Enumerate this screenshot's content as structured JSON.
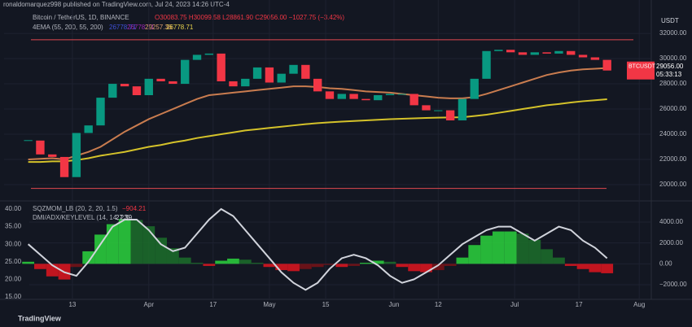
{
  "header": {
    "author_line": "ronaldomarquez998 published on TradingView.com, Jul 24, 2023 14:26 UTC-4",
    "symbol": "Bitcoin / TetherUS, 1D, BINANCE",
    "ohlc": "O30083.75  H30099.58  L28861.90  C29056.00  −1027.75 (−3.42%)",
    "ema_title": "4EMA (55, 200, 55, 200)",
    "ema_values": [
      "26778.71",
      "26778.71",
      "29257.36",
      "26778.71"
    ],
    "currency": "USDT",
    "brand": "TradingView"
  },
  "chart_data": [
    {
      "type": "candlestick",
      "x": [
        61,
        64,
        67,
        70,
        73,
        76,
        79,
        82,
        85,
        88,
        91,
        94,
        97,
        100,
        103,
        106,
        109,
        112,
        115,
        118,
        121,
        124,
        127,
        130,
        133,
        136,
        139,
        142,
        145,
        148,
        151,
        154,
        157,
        160,
        163,
        166,
        169,
        172,
        175,
        178,
        181,
        184,
        187,
        190,
        193,
        196,
        199,
        202,
        205
      ],
      "close": [
        23500,
        22400,
        22200,
        20600,
        24100,
        24700,
        26900,
        28000,
        27800,
        27100,
        28400,
        28200,
        28000,
        29900,
        30300,
        30400,
        28200,
        27800,
        28400,
        29300,
        28100,
        28800,
        29500,
        28400,
        27400,
        26800,
        27200,
        26800,
        26700,
        27100,
        27200,
        27200,
        26300,
        25900,
        25900,
        25100,
        26800,
        28400,
        30600,
        30700,
        30500,
        30300,
        30500,
        30400,
        30600,
        30300,
        30100,
        29900,
        29056
      ],
      "up_color": "#089981",
      "down_color": "#f23645",
      "lines": [
        {
          "color": "#c97c4f",
          "values": [
            22000,
            22050,
            22100,
            22000,
            22300,
            22600,
            23000,
            23600,
            24200,
            24700,
            25200,
            25600,
            26000,
            26400,
            26800,
            27100,
            27200,
            27300,
            27400,
            27500,
            27600,
            27700,
            27800,
            27800,
            27750,
            27650,
            27600,
            27500,
            27400,
            27350,
            27300,
            27200,
            27100,
            27000,
            26900,
            26850,
            26850,
            26950,
            27200,
            27500,
            27800,
            28100,
            28400,
            28700,
            28900,
            29050,
            29150,
            29200,
            29257.36
          ]
        },
        {
          "color": "#d4c22a",
          "values": [
            21800,
            21800,
            21850,
            21850,
            21950,
            22100,
            22300,
            22450,
            22600,
            22800,
            23000,
            23150,
            23350,
            23500,
            23700,
            23850,
            24000,
            24150,
            24300,
            24400,
            24500,
            24600,
            24700,
            24800,
            24880,
            24950,
            25000,
            25050,
            25100,
            25150,
            25200,
            25230,
            25260,
            25290,
            25320,
            25330,
            25350,
            25450,
            25550,
            25700,
            25850,
            26000,
            26150,
            26300,
            26400,
            26520,
            26620,
            26700,
            26778.71
          ]
        }
      ],
      "levels": [
        31500,
        19700
      ],
      "level_color": "#e0484f",
      "price_tag": {
        "symbol": "BTCUSDT",
        "price": "29056.00",
        "timer": "05:33:13"
      },
      "xlim": [
        55,
        216
      ],
      "ylim": [
        18840,
        34650
      ],
      "xticks": [
        {
          "value": 72,
          "label": "13"
        },
        {
          "value": 91,
          "label": "Apr"
        },
        {
          "value": 107,
          "label": "17"
        },
        {
          "value": 121,
          "label": "May"
        },
        {
          "value": 135,
          "label": "15"
        },
        {
          "value": 152,
          "label": "Jun"
        },
        {
          "value": 163,
          "label": "12"
        },
        {
          "value": 182,
          "label": "Jul"
        },
        {
          "value": 198,
          "label": "17"
        },
        {
          "value": 213,
          "label": "Aug"
        }
      ],
      "yticks": [
        {
          "value": 20000,
          "label": "20000.00"
        },
        {
          "value": 22000,
          "label": "22000.00"
        },
        {
          "value": 24000,
          "label": "24000.00"
        },
        {
          "value": 26000,
          "label": "26000.00"
        },
        {
          "value": 28000,
          "label": "28000.00"
        },
        {
          "value": 30000,
          "label": "30000.00"
        },
        {
          "value": 32000,
          "label": "32000.00"
        }
      ]
    },
    {
      "type": "bar",
      "title": "SQZMOM_LB (20, 2, 20, 1.5)",
      "title_value": "−904.21",
      "subtitle": "DMI/ADX/KEYLEVEL (14, 14, 23)",
      "subtitle_value": "27.39",
      "x": [
        61,
        64,
        67,
        70,
        73,
        76,
        79,
        82,
        85,
        88,
        91,
        94,
        97,
        100,
        103,
        106,
        109,
        112,
        115,
        118,
        121,
        124,
        127,
        130,
        133,
        136,
        139,
        142,
        145,
        148,
        151,
        154,
        157,
        160,
        163,
        166,
        169,
        172,
        175,
        178,
        181,
        184,
        187,
        190,
        193,
        196,
        199,
        202,
        205
      ],
      "series": [
        {
          "axis": "y2",
          "values": [
            200,
            -500,
            -1200,
            -1500,
            -300,
            1200,
            2800,
            3800,
            4300,
            4200,
            3600,
            2500,
            1500,
            600,
            100,
            -200,
            300,
            500,
            400,
            100,
            -300,
            -600,
            -700,
            -500,
            -300,
            -100,
            -300,
            -200,
            100,
            300,
            200,
            -300,
            -700,
            -800,
            -600,
            -200,
            600,
            1800,
            2700,
            3100,
            3100,
            2900,
            2300,
            1400,
            600,
            -200,
            -500,
            -800,
            -900
          ]
        },
        {
          "color": "#d1d4dc",
          "values": [
            30,
            27,
            24,
            22,
            21,
            25,
            30,
            35,
            37,
            37,
            34,
            30,
            28,
            29,
            33,
            37,
            40,
            38,
            34,
            30,
            26,
            22,
            19,
            17,
            19,
            23,
            26,
            27,
            26,
            24,
            21,
            19,
            20,
            22,
            24,
            27,
            30,
            32,
            34,
            35,
            35,
            33,
            31,
            33,
            35,
            34,
            31,
            29,
            26
          ]
        }
      ],
      "colors": {
        "up_strong": "#2bd43d",
        "up_weak": "#1c6e2a",
        "down_strong": "#e0151f",
        "down_weak": "#7a1216"
      },
      "xlim": [
        55,
        216
      ],
      "ylim": [
        14.3,
        41.85
      ],
      "y2lim": [
        -3400,
        5870
      ],
      "yticks": [
        {
          "value": 15,
          "label": "15.00"
        },
        {
          "value": 20,
          "label": "20.00"
        },
        {
          "value": 25,
          "label": "25.00"
        },
        {
          "value": 30,
          "label": "30.00"
        },
        {
          "value": 35,
          "label": "35.00"
        },
        {
          "value": 40,
          "label": "40.00"
        }
      ],
      "y2ticks": [
        {
          "value": -2000,
          "label": "−2000.00"
        },
        {
          "value": 0,
          "label": "0.00"
        },
        {
          "value": 2000,
          "label": "2000.00"
        },
        {
          "value": 4000,
          "label": "4000.00"
        }
      ]
    }
  ]
}
